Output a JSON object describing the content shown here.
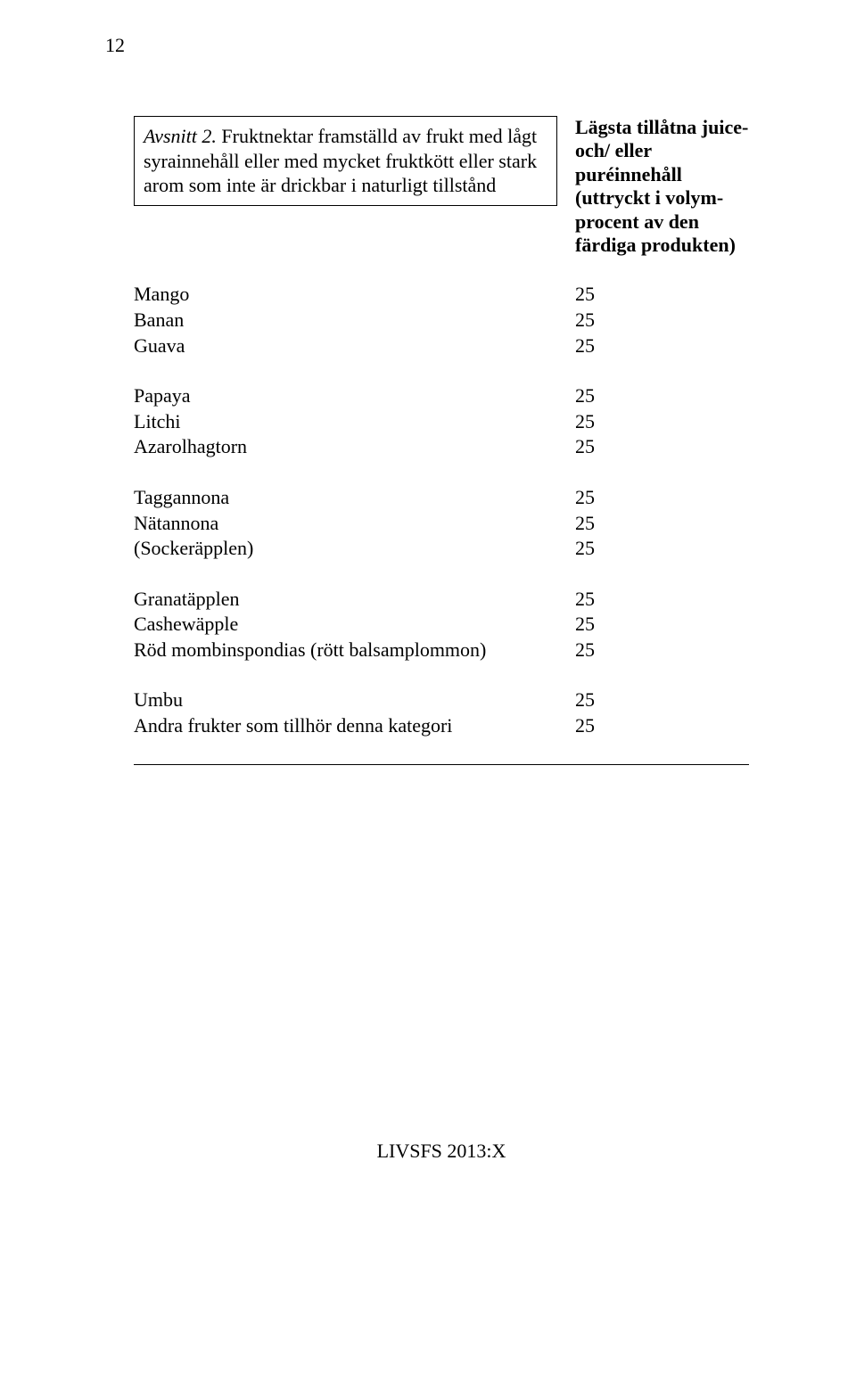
{
  "page_number": "12",
  "heading": {
    "section_label": "Avsnitt 2.",
    "section_text": " Fruktnektar framställd av frukt med lågt syrainnehåll eller med mycket fruktkött eller stark arom som inte är drickbar i naturligt tillstånd",
    "right_col": "Lägsta tillåtna juice- och/ eller puréinnehåll (uttryckt i volym- procent av den färdiga produkten)"
  },
  "groups": [
    [
      {
        "name": "Mango",
        "value": "25"
      },
      {
        "name": "Banan",
        "value": "25"
      },
      {
        "name": "Guava",
        "value": "25"
      }
    ],
    [
      {
        "name": "Papaya",
        "value": "25"
      },
      {
        "name": "Litchi",
        "value": "25"
      },
      {
        "name": "Azarolhagtorn",
        "value": "25"
      }
    ],
    [
      {
        "name": "Taggannona",
        "value": "25"
      },
      {
        "name": "Nätannona",
        "value": "25"
      },
      {
        "name": "(Sockeräpplen)",
        "value": "25"
      }
    ],
    [
      {
        "name": "Granatäpplen",
        "value": "25"
      },
      {
        "name": "Cashewäpple",
        "value": "25"
      },
      {
        "name": "Röd mombinspondias (rött balsamplommon)",
        "value": "25"
      }
    ],
    [
      {
        "name": "Umbu",
        "value": "25"
      },
      {
        "name": "Andra frukter som tillhör denna kategori",
        "value": "25"
      }
    ]
  ],
  "footer": "LIVSFS 2013:X"
}
